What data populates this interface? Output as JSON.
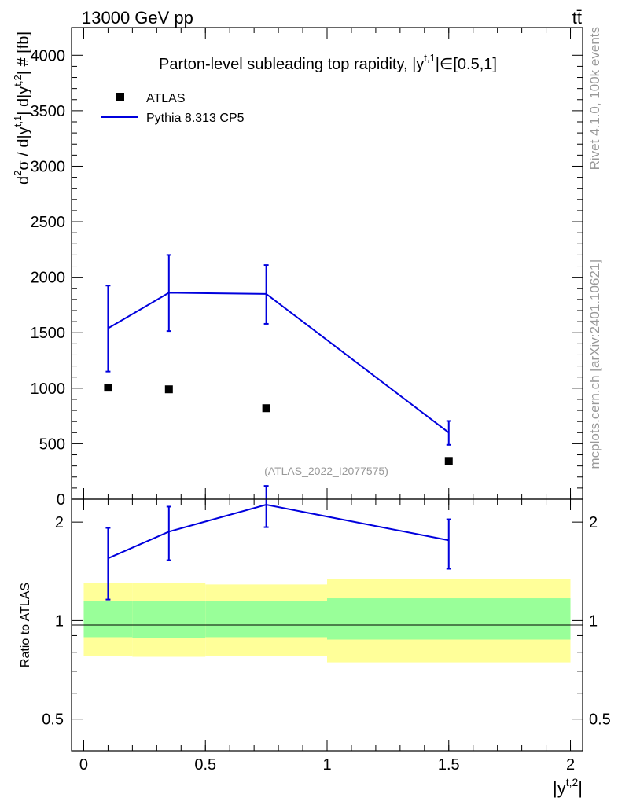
{
  "header": {
    "energy_label": "13000 GeV pp",
    "process_label": "tt̄"
  },
  "side_text": {
    "rivet": "Rivet 4.1.0,  100k events",
    "mcplots": "mcplots.cern.ch [arXiv:2401.10621]"
  },
  "chart_data": [
    {
      "type": "scatter",
      "title": "Parton-level subleading top rapidity, |y^t,1| ∈ [0.5,1]",
      "title_parts": {
        "main": "Parton-level subleading top rapidity, |y",
        "sup": "t,1",
        "tail": "|∈[0.5,1]"
      },
      "ylabel": "d²σ / d|y^t,1| d|y^t,2| # [fb]",
      "ylabel_parts": {
        "p1": "d",
        "s1": "2",
        "p2": "σ / d|y",
        "s2": "t,1",
        "p3": "| d|y",
        "s3": "t,2",
        "p4": "| # [fb]"
      },
      "xlim": [
        -0.05,
        2.05
      ],
      "ylim": [
        0,
        4250
      ],
      "yticks": [
        0,
        500,
        1000,
        1500,
        2000,
        2500,
        3000,
        3500,
        4000
      ],
      "watermark": "(ATLAS_2022_I2077575)",
      "legend": {
        "position": "top-left",
        "entries": [
          "ATLAS",
          "Pythia 8.313 CP5"
        ]
      },
      "series": [
        {
          "name": "ATLAS",
          "color": "#000000",
          "x": [
            0.1,
            0.35,
            0.75,
            1.5
          ],
          "y": [
            1005,
            990,
            820,
            345
          ]
        },
        {
          "name": "Pythia 8.313 CP5",
          "color": "#0000dd",
          "x": [
            0.1,
            0.35,
            0.75,
            1.5
          ],
          "y": [
            1540,
            1860,
            1850,
            600
          ],
          "err_low": [
            1150,
            1515,
            1580,
            490
          ],
          "err_high": [
            1925,
            2200,
            2110,
            705
          ]
        }
      ]
    },
    {
      "type": "scatter",
      "ylabel": "Ratio to ATLAS",
      "xlabel": "|y^t,2|",
      "xlabel_parts": {
        "main": "|y",
        "sup": "t,2",
        "tail": "|"
      },
      "xlim": [
        -0.05,
        2.05
      ],
      "ylim": [
        0.4,
        2.35
      ],
      "yscale": "log",
      "yticks": [
        0.5,
        1,
        2
      ],
      "ytick_labels": [
        "0.5",
        "1",
        "2"
      ],
      "xticks": [
        0,
        0.5,
        1,
        1.5,
        2
      ],
      "xtick_labels": [
        "0",
        "0.5",
        "1",
        "1.5",
        "2"
      ],
      "bands": [
        {
          "x0": 0.0,
          "x1": 0.2,
          "outer": [
            0.78,
            1.3
          ],
          "inner": [
            0.89,
            1.15
          ]
        },
        {
          "x0": 0.2,
          "x1": 0.5,
          "outer": [
            0.775,
            1.3
          ],
          "inner": [
            0.885,
            1.15
          ]
        },
        {
          "x0": 0.5,
          "x1": 1.0,
          "outer": [
            0.78,
            1.29
          ],
          "inner": [
            0.89,
            1.15
          ]
        },
        {
          "x0": 1.0,
          "x1": 2.0,
          "outer": [
            0.745,
            1.34
          ],
          "inner": [
            0.875,
            1.17
          ]
        }
      ],
      "band_colors": {
        "outer": "#ffff99",
        "inner": "#99ff99"
      },
      "series": [
        {
          "name": "Pythia 8.313 CP5",
          "color": "#0000dd",
          "x": [
            0.1,
            0.35,
            0.75,
            1.5
          ],
          "y": [
            1.55,
            1.87,
            2.26,
            1.76
          ],
          "err_low": [
            1.16,
            1.53,
            1.93,
            1.44
          ],
          "err_high": [
            1.92,
            2.23,
            2.58,
            2.04
          ]
        }
      ]
    }
  ]
}
